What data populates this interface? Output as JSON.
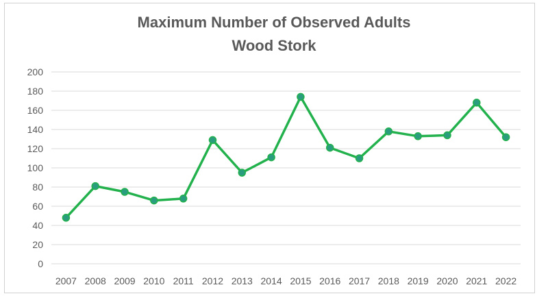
{
  "chart_data": {
    "type": "line",
    "title": "Maximum Number of Observed Adults",
    "subtitle": "Wood Stork",
    "xlabel": "",
    "ylabel": "",
    "categories": [
      "2007",
      "2008",
      "2009",
      "2010",
      "2011",
      "2012",
      "2013",
      "2014",
      "2015",
      "2016",
      "2017",
      "2018",
      "2019",
      "2020",
      "2021",
      "2022"
    ],
    "series": [
      {
        "values": [
          48,
          81,
          75,
          66,
          68,
          129,
          95,
          111,
          174,
          121,
          110,
          138,
          133,
          134,
          168,
          132
        ]
      }
    ],
    "ylim": [
      0,
      200
    ],
    "yticks": [
      "0",
      "20",
      "40",
      "60",
      "80",
      "100",
      "120",
      "140",
      "160",
      "180",
      "200"
    ],
    "grid": true,
    "legend": "none",
    "colors": {
      "line": "#22b14c",
      "marker": "#2a9d7f",
      "grid": "#d9d9d9",
      "text": "#595959"
    }
  }
}
